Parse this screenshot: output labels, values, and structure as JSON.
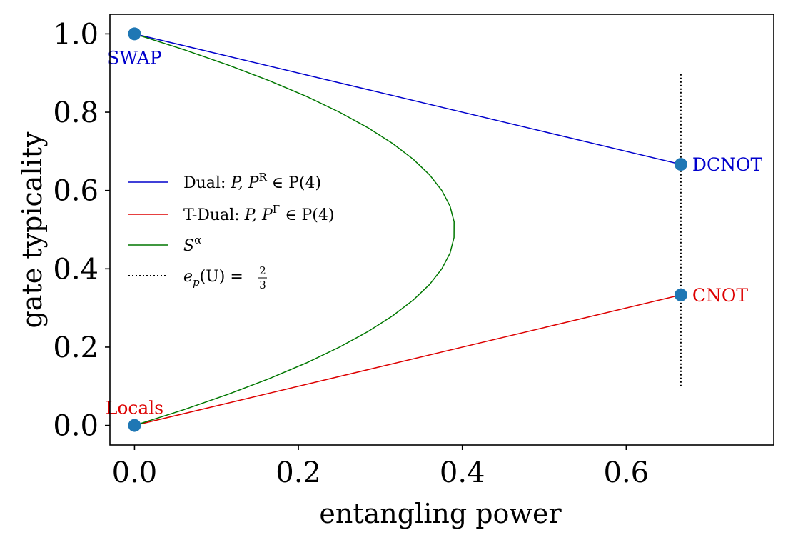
{
  "chart_data": {
    "type": "line",
    "title": "",
    "xlabel": "entangling power",
    "ylabel": "gate typicality",
    "xlim": [
      -0.03,
      0.78
    ],
    "ylim": [
      -0.05,
      1.05
    ],
    "xticks": [
      {
        "value": 0.0,
        "label": "0.0"
      },
      {
        "value": 0.2,
        "label": "0.2"
      },
      {
        "value": 0.4,
        "label": "0.4"
      },
      {
        "value": 0.6,
        "label": "0.6"
      }
    ],
    "yticks": [
      {
        "value": 0.0,
        "label": "0.0"
      },
      {
        "value": 0.2,
        "label": "0.2"
      },
      {
        "value": 0.4,
        "label": "0.4"
      },
      {
        "value": 0.6,
        "label": "0.6"
      },
      {
        "value": 0.8,
        "label": "0.8"
      },
      {
        "value": 1.0,
        "label": "1.0"
      }
    ],
    "grid": false,
    "legend_position": "center-left",
    "series": [
      {
        "name": "Dual",
        "legend_label": "Dual: P, P^R ∈ P(4)",
        "legend_parts": {
          "prefix": "Dual:",
          "sym": "P, P",
          "sup": "R",
          "rest": " ∈ P(4)"
        },
        "color": "#0000cc",
        "style": "solid",
        "x": [
          0.0,
          0.6667
        ],
        "y": [
          1.0,
          0.6667
        ]
      },
      {
        "name": "T-Dual",
        "legend_label": "T-Dual: P, P^Γ ∈ P(4)",
        "legend_parts": {
          "prefix": "T-Dual:",
          "sym": "P, P",
          "sup": "Γ",
          "rest": " ∈ P(4)"
        },
        "color": "#dd0000",
        "style": "solid",
        "x": [
          0.0,
          0.6667
        ],
        "y": [
          0.0,
          0.3333
        ]
      },
      {
        "name": "S^alpha",
        "legend_label": "S^α",
        "legend_parts": {
          "sym": "S",
          "sup": "α"
        },
        "color": "#007700",
        "style": "solid",
        "x": [
          0.0,
          0.0599,
          0.1149,
          0.165,
          0.2101,
          0.25,
          0.2851,
          0.315,
          0.34,
          0.3601,
          0.375,
          0.385,
          0.3899,
          0.39,
          0.385,
          0.375,
          0.3601,
          0.34,
          0.315,
          0.2851,
          0.25,
          0.2101,
          0.165,
          0.1149,
          0.0599,
          0.0
        ],
        "y": [
          0.0,
          0.04,
          0.08,
          0.12,
          0.16,
          0.2,
          0.24,
          0.28,
          0.32,
          0.36,
          0.4,
          0.44,
          0.48,
          0.52,
          0.56,
          0.6,
          0.64,
          0.68,
          0.72,
          0.76,
          0.8,
          0.84,
          0.88,
          0.92,
          0.96,
          1.0
        ]
      },
      {
        "name": "ep(U) = 2/3",
        "legend_label": "e_p(U) = 2/3",
        "legend_parts": {
          "e": "e",
          "sub": "p",
          "mid": "(U) = ",
          "num": "2",
          "den": "3"
        },
        "color": "#000000",
        "style": "dotted",
        "x": [
          0.6667,
          0.6667
        ],
        "y": [
          0.1,
          0.9
        ]
      }
    ],
    "points": [
      {
        "label": "SWAP",
        "x": 0.0,
        "y": 1.0,
        "label_color": "#0000cc",
        "label_position": "below"
      },
      {
        "label": "Locals",
        "x": 0.0,
        "y": 0.0,
        "label_color": "#dd0000",
        "label_position": "above"
      },
      {
        "label": "DCNOT",
        "x": 0.6667,
        "y": 0.6667,
        "label_color": "#0000cc",
        "label_position": "right"
      },
      {
        "label": "CNOT",
        "x": 0.6667,
        "y": 0.3333,
        "label_color": "#dd0000",
        "label_position": "right"
      }
    ],
    "marker_color": "#1f77b4"
  }
}
